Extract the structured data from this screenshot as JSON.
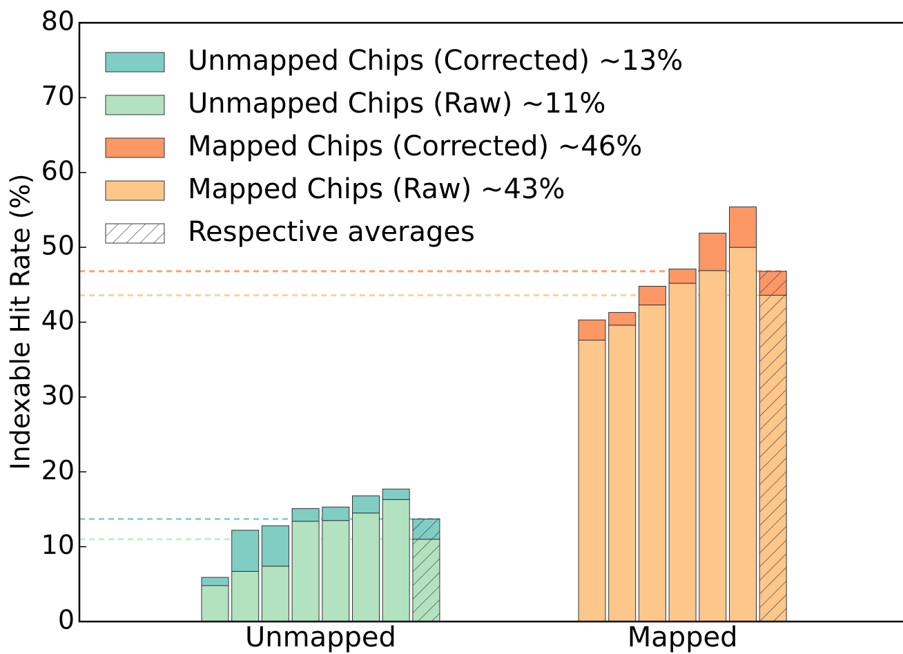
{
  "chart_data": {
    "type": "bar",
    "ylabel": "Indexable Hit Rate (%)",
    "ylim": [
      0,
      80
    ],
    "yticks": [
      0,
      10,
      20,
      30,
      40,
      50,
      60,
      70,
      80
    ],
    "hatch_label": "Respective averages",
    "groups": [
      {
        "category": "Unmapped",
        "series": [
          {
            "name": "Unmapped Chips (Raw) ~11%",
            "color": "#b3e2c0",
            "line_color": "#c6ecd0",
            "values": [
              4.8,
              6.7,
              7.4,
              13.4,
              13.5,
              14.5,
              16.3
            ],
            "average": 11.0
          },
          {
            "name": "Unmapped Chips (Corrected) ~13%",
            "color": "#80cdc4",
            "line_color": "#8fd3cb",
            "values": [
              1.1,
              5.5,
              5.4,
              1.7,
              1.8,
              2.3,
              1.4
            ],
            "average": 2.7
          }
        ]
      },
      {
        "category": "Mapped",
        "series": [
          {
            "name": "Mapped Chips (Raw) ~43%",
            "color": "#fdc68a",
            "line_color": "#fdd39c",
            "values": [
              37.6,
              39.6,
              42.3,
              45.2,
              46.9,
              50.0
            ],
            "average": 43.6
          },
          {
            "name": "Mapped Chips (Corrected) ~46%",
            "color": "#fc9766",
            "line_color": "#fca673",
            "values": [
              2.7,
              1.7,
              2.5,
              1.9,
              5.0,
              5.4
            ],
            "average": 3.2
          }
        ]
      }
    ]
  }
}
